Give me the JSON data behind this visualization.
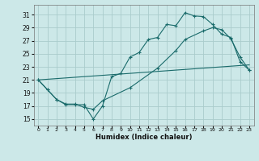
{
  "xlabel": "Humidex (Indice chaleur)",
  "background_color": "#cce8e8",
  "grid_color": "#aacccc",
  "line_color": "#1a6b6b",
  "xlim": [
    -0.5,
    23.5
  ],
  "ylim": [
    14.0,
    32.5
  ],
  "yticks": [
    15,
    17,
    19,
    21,
    23,
    25,
    27,
    29,
    31
  ],
  "xticks": [
    0,
    1,
    2,
    3,
    4,
    5,
    6,
    7,
    8,
    9,
    10,
    11,
    12,
    13,
    14,
    15,
    16,
    17,
    18,
    19,
    20,
    21,
    22,
    23
  ],
  "curve1_x": [
    0,
    1,
    2,
    3,
    4,
    5,
    6,
    7,
    8,
    9,
    10,
    11,
    12,
    13,
    14,
    15,
    16,
    17,
    18,
    19,
    20,
    21,
    22,
    23
  ],
  "curve1_y": [
    21.0,
    19.5,
    18.0,
    17.2,
    17.2,
    17.2,
    15.0,
    17.0,
    21.5,
    22.0,
    24.5,
    25.2,
    27.2,
    27.5,
    29.5,
    29.3,
    31.3,
    30.8,
    30.7,
    29.5,
    28.0,
    27.5,
    23.8,
    22.5
  ],
  "curve2_x": [
    0,
    1,
    2,
    3,
    4,
    5,
    6,
    7,
    10,
    13,
    15,
    16,
    18,
    19,
    20,
    21,
    22,
    23
  ],
  "curve2_y": [
    21.0,
    19.5,
    18.0,
    17.3,
    17.3,
    16.8,
    16.5,
    17.8,
    19.8,
    22.8,
    25.5,
    27.2,
    28.5,
    29.0,
    28.7,
    27.3,
    24.5,
    22.5
  ],
  "curve3_x": [
    0,
    5,
    10,
    15,
    20,
    23
  ],
  "curve3_y": [
    21.0,
    21.5,
    22.0,
    22.5,
    23.0,
    23.3
  ]
}
